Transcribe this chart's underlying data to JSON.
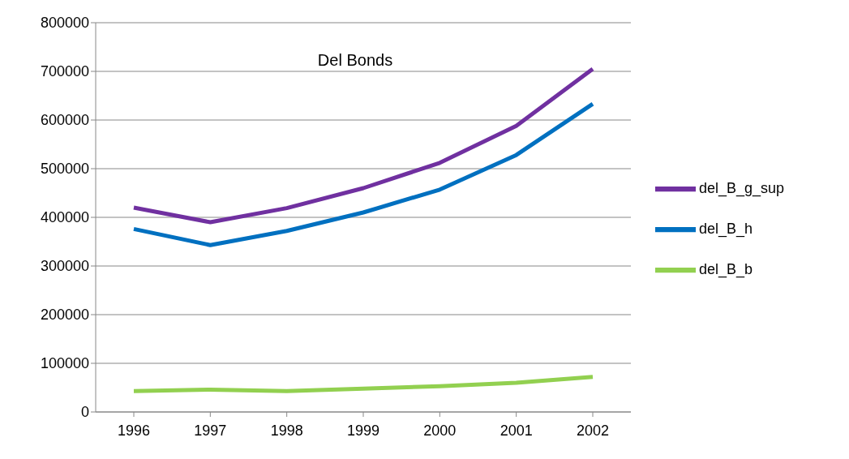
{
  "chart_data": {
    "type": "line",
    "title": "Del Bonds",
    "categories": [
      "1996",
      "1997",
      "1998",
      "1999",
      "2000",
      "2001",
      "2002"
    ],
    "series": [
      {
        "name": "del_B_g_sup",
        "color": "#7030a0",
        "values": [
          420000,
          390000,
          419000,
          460000,
          512000,
          588000,
          705000
        ]
      },
      {
        "name": "del_B_h",
        "color": "#0070c0",
        "values": [
          376000,
          343000,
          372000,
          410000,
          457000,
          528000,
          633000
        ]
      },
      {
        "name": "del_B_b",
        "color": "#92d050",
        "values": [
          43000,
          46000,
          43000,
          48000,
          53000,
          60000,
          72000
        ]
      }
    ],
    "ylim": [
      0,
      800000
    ],
    "yticks": [
      0,
      100000,
      200000,
      300000,
      400000,
      500000,
      600000,
      700000,
      800000
    ],
    "grid": "y",
    "legend": "right",
    "marker": "none",
    "line_style": "solid"
  }
}
